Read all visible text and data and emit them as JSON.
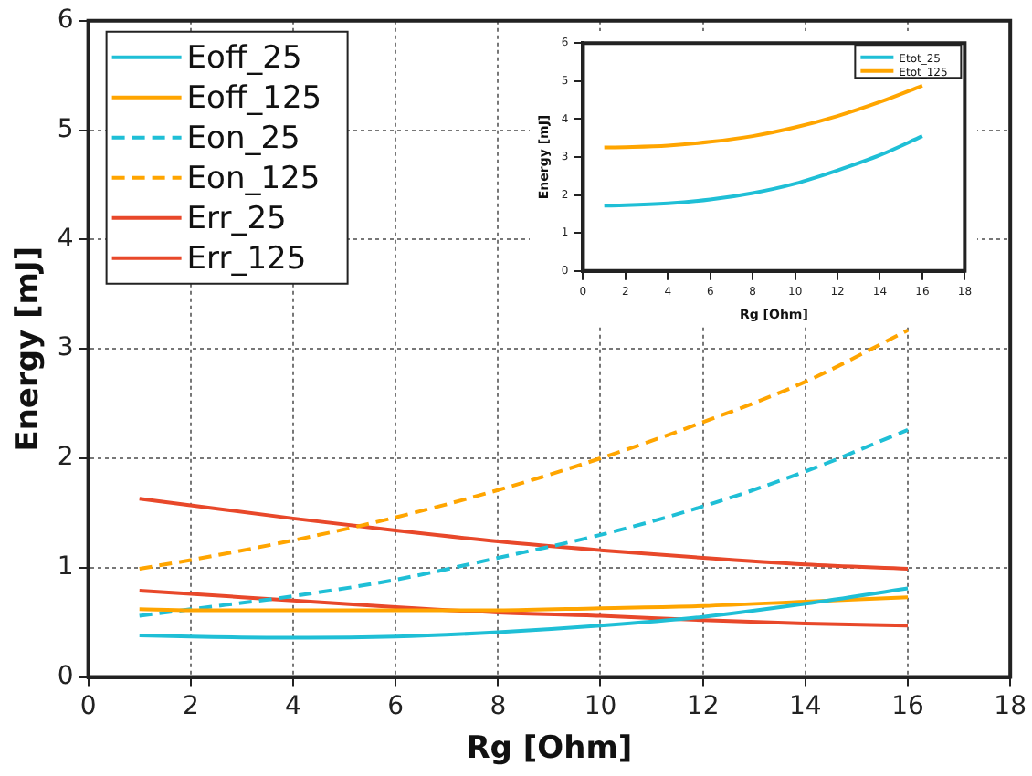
{
  "chart_data": [
    {
      "type": "line",
      "xlabel": "Rg [Ohm]",
      "ylabel": "Energy [mJ]",
      "x": [
        1,
        2,
        4,
        6,
        8,
        10,
        12,
        14,
        16
      ],
      "series": [
        {
          "name": "Eoff_25",
          "color": "#1fbfd6",
          "line_style": "solid",
          "values": [
            0.38,
            0.37,
            0.36,
            0.37,
            0.41,
            0.47,
            0.55,
            0.67,
            0.81
          ]
        },
        {
          "name": "Eoff_125",
          "color": "#ffa500",
          "line_style": "solid",
          "values": [
            0.62,
            0.61,
            0.61,
            0.61,
            0.61,
            0.63,
            0.65,
            0.69,
            0.73
          ]
        },
        {
          "name": "Eon_25",
          "color": "#1fbfd6",
          "line_style": "dashed",
          "values": [
            0.56,
            0.62,
            0.74,
            0.89,
            1.09,
            1.3,
            1.56,
            1.88,
            2.26
          ]
        },
        {
          "name": "Eon_125",
          "color": "#ffa500",
          "line_style": "dashed",
          "values": [
            0.99,
            1.07,
            1.25,
            1.46,
            1.71,
            2.0,
            2.33,
            2.7,
            3.17
          ]
        },
        {
          "name": "Err_25",
          "color": "#e8482a",
          "line_style": "solid",
          "values": [
            0.79,
            0.76,
            0.7,
            0.64,
            0.59,
            0.56,
            0.52,
            0.49,
            0.47
          ]
        },
        {
          "name": "Err_125",
          "color": "#e8482a",
          "line_style": "solid",
          "values": [
            1.63,
            1.57,
            1.45,
            1.34,
            1.24,
            1.16,
            1.09,
            1.03,
            0.99
          ]
        }
      ],
      "xlim": [
        0,
        18
      ],
      "xticks": [
        0,
        2,
        4,
        6,
        8,
        10,
        12,
        14,
        16,
        18
      ],
      "ylim": [
        0,
        6
      ],
      "yticks": [
        0,
        1,
        2,
        3,
        4,
        5,
        6
      ],
      "grid": true,
      "legend": "top left",
      "marker": "none"
    },
    {
      "type": "line",
      "xlabel": "Rg [Ohm]",
      "ylabel": "Energy [mJ]",
      "x": [
        1,
        2,
        4,
        6,
        8,
        10,
        12,
        14,
        16
      ],
      "series": [
        {
          "name": "Etot_25",
          "color": "#1fbfd6",
          "line_style": "solid",
          "values": [
            1.72,
            1.73,
            1.78,
            1.88,
            2.05,
            2.3,
            2.65,
            3.05,
            3.55
          ]
        },
        {
          "name": "Etot_125",
          "color": "#ffa500",
          "line_style": "solid",
          "values": [
            3.25,
            3.26,
            3.3,
            3.4,
            3.55,
            3.78,
            4.08,
            4.45,
            4.88
          ]
        }
      ],
      "xlim": [
        0,
        18
      ],
      "xticks": [
        0,
        2,
        4,
        6,
        8,
        10,
        12,
        14,
        16,
        18
      ],
      "ylim": [
        0,
        6
      ],
      "yticks": [
        0,
        1,
        2,
        3,
        4,
        5,
        6
      ],
      "grid": false,
      "legend": "top right",
      "marker": "none"
    }
  ]
}
